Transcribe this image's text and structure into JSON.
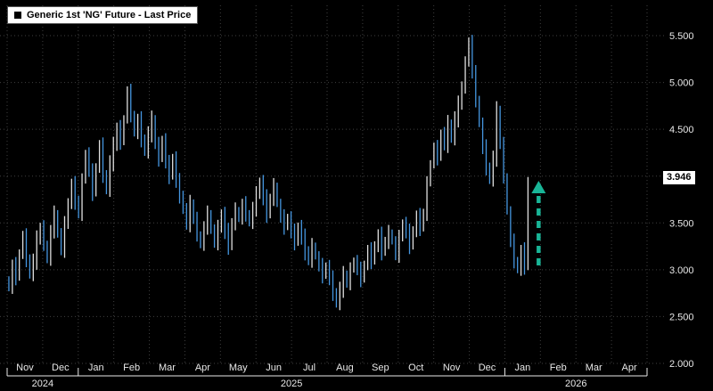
{
  "legend": {
    "label": "Generic 1st 'NG' Future - Last Price",
    "swatch_color": "#000000"
  },
  "last_price_tag": "3.946",
  "colors": {
    "background": "#000000",
    "grid": "#3f3f3f",
    "up_bar": "#e0e0e0",
    "down_bar": "#4596e0",
    "axis_text": "#e8e8e8",
    "tag_bg": "#ffffff",
    "tag_text": "#000000"
  },
  "annotations": {
    "arrow": {
      "direction": "up",
      "color": "#19b597",
      "month_position": 14.95,
      "from_price": 3.02,
      "to_price": 3.95
    }
  },
  "chart_data": {
    "type": "ohlc-bar",
    "title": "Generic 1st 'NG' Future - Last Price",
    "ylabel": "",
    "xlabel": "",
    "ylim": [
      2.0,
      5.5
    ],
    "grid": true,
    "legend_position": "top-left",
    "last_price": 3.946,
    "y_ticks": [
      {
        "value": 5.5,
        "label": "5.500"
      },
      {
        "value": 5.0,
        "label": "5.000"
      },
      {
        "value": 4.5,
        "label": "4.500"
      },
      {
        "value": 4.0,
        "label": "4.000"
      },
      {
        "value": 3.5,
        "label": "3.500"
      },
      {
        "value": 3.0,
        "label": "3.000"
      },
      {
        "value": 2.5,
        "label": "2.500"
      },
      {
        "value": 2.0,
        "label": "2.000"
      }
    ],
    "x_axis": {
      "months": [
        "Nov",
        "Dec",
        "Jan",
        "Feb",
        "Mar",
        "Apr",
        "May",
        "Jun",
        "Jul",
        "Aug",
        "Sep",
        "Oct",
        "Nov",
        "Dec",
        "Jan",
        "Feb",
        "Mar",
        "Apr"
      ],
      "years": [
        {
          "label": "2024",
          "span": [
            0,
            2
          ]
        },
        {
          "label": "2025",
          "span": [
            2,
            14
          ]
        },
        {
          "label": "2026",
          "span": [
            14,
            18
          ]
        }
      ]
    },
    "first_open": 2.9,
    "closes": [
      2.8,
      3.05,
      2.92,
      3.18,
      3.35,
      3.12,
      2.95,
      3.1,
      3.32,
      3.45,
      3.28,
      3.1,
      3.42,
      3.6,
      3.38,
      3.22,
      3.48,
      3.72,
      3.9,
      3.74,
      3.6,
      3.95,
      4.25,
      4.05,
      3.82,
      4.1,
      4.32,
      4.02,
      3.85,
      4.15,
      4.32,
      4.52,
      4.36,
      4.62,
      4.9,
      4.66,
      4.46,
      4.6,
      4.4,
      4.26,
      4.46,
      4.6,
      4.34,
      4.18,
      4.4,
      4.14,
      4.0,
      4.2,
      3.94,
      3.8,
      3.64,
      3.5,
      3.7,
      3.54,
      3.38,
      3.26,
      3.46,
      3.6,
      3.42,
      3.3,
      3.44,
      3.6,
      3.4,
      3.26,
      3.5,
      3.64,
      3.54,
      3.7,
      3.6,
      3.5,
      3.66,
      3.8,
      3.94,
      3.76,
      3.6,
      3.76,
      3.9,
      3.7,
      3.56,
      3.46,
      3.56,
      3.4,
      3.3,
      3.46,
      3.34,
      3.2,
      3.1,
      3.26,
      3.14,
      3.04,
      2.94,
      3.04,
      2.9,
      2.76,
      2.64,
      2.8,
      2.94,
      2.86,
      3.0,
      3.1,
      3.0,
      2.9,
      3.06,
      3.2,
      3.1,
      3.26,
      3.36,
      3.2,
      3.3,
      3.4,
      3.3,
      3.16,
      3.34,
      3.5,
      3.4,
      3.26,
      3.42,
      3.56,
      3.46,
      3.6,
      3.92,
      4.14,
      4.3,
      4.2,
      4.46,
      4.34,
      4.56,
      4.4,
      4.62,
      4.76,
      4.96,
      5.2,
      5.45,
      5.1,
      4.82,
      4.56,
      4.3,
      4.1,
      3.96,
      4.2,
      4.7,
      4.34,
      4.0,
      3.62,
      3.3,
      3.1,
      3.0,
      3.2,
      3.04,
      3.946
    ],
    "bar_hints": {
      "wick_base": 0.03,
      "wick_var": 0.07,
      "data_month_span": 14.7,
      "total_month_span": 18
    }
  }
}
